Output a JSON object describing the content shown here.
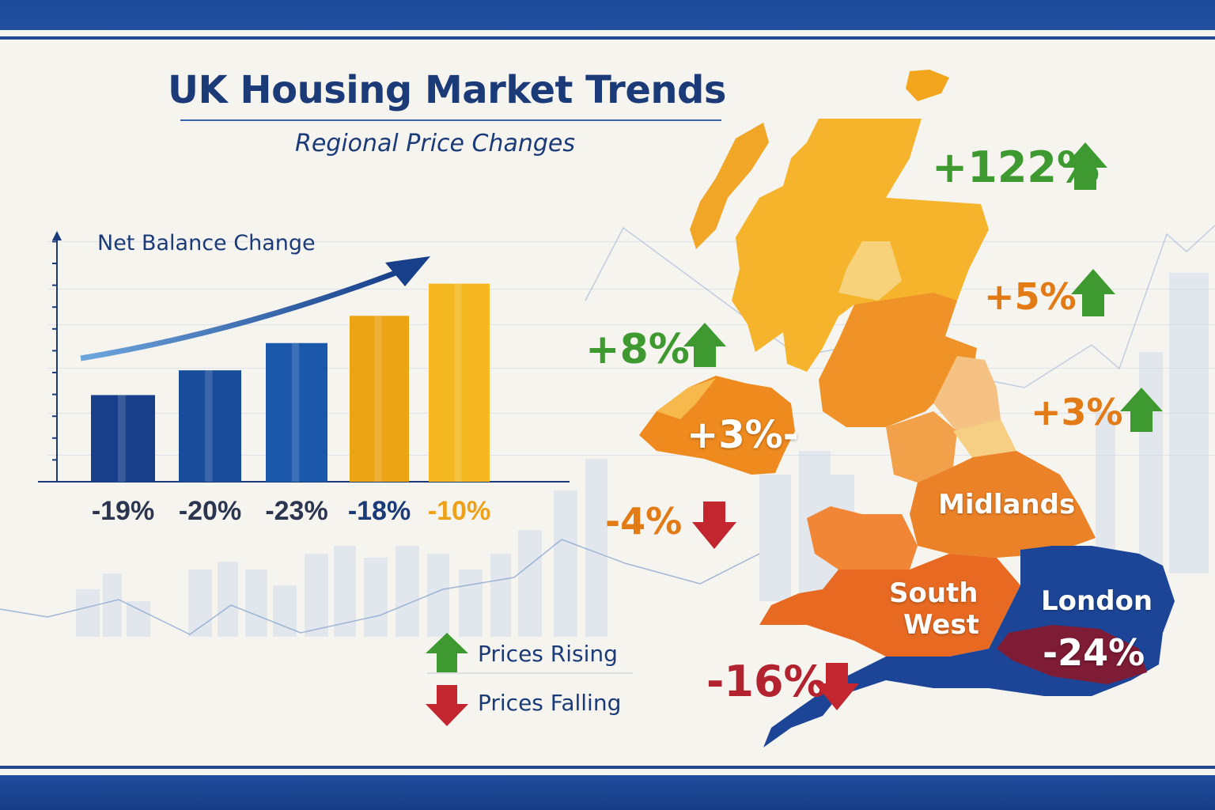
{
  "header": {
    "title": "UK Housing Market Trends",
    "subtitle": "Regional Price Changes"
  },
  "chart_data": {
    "type": "bar",
    "title": "Net Balance Change",
    "categories": [
      "-19%",
      "-20%",
      "-23%",
      "-18%",
      "-10%"
    ],
    "values_relative_to_axis": [
      0.35,
      0.45,
      0.56,
      0.67,
      0.8
    ],
    "bar_colors": [
      "#173f8a",
      "#1a4c9c",
      "#1b57ab",
      "#eba414",
      "#f5b820"
    ],
    "label_colors": [
      "#2c3550",
      "#2c3550",
      "#2c3550",
      "#1b3a78",
      "#eda018"
    ],
    "trend": "rising",
    "ylim": [
      0,
      1
    ],
    "xlabel": "",
    "ylabel": ""
  },
  "map": {
    "regions": {
      "midlands": "Midlands",
      "south_west_line1": "South",
      "south_west_line2": "West",
      "london": "London"
    },
    "callouts": [
      {
        "text": "+122%",
        "direction": "up"
      },
      {
        "text": "+5%",
        "direction": "up"
      },
      {
        "text": "+8%",
        "direction": "up"
      },
      {
        "text": "+3%-",
        "direction": "none"
      },
      {
        "text": "+3%",
        "direction": "up"
      },
      {
        "text": "-4%",
        "direction": "down"
      },
      {
        "text": "-24%",
        "direction": "none"
      },
      {
        "text": "-16%",
        "direction": "down"
      }
    ]
  },
  "legend": {
    "rising": "Prices Rising",
    "falling": "Prices Falling"
  },
  "colors": {
    "navy": "#1b3a78",
    "up": "#3e9a30",
    "down": "#c3262f",
    "orange": "#e27b16"
  }
}
